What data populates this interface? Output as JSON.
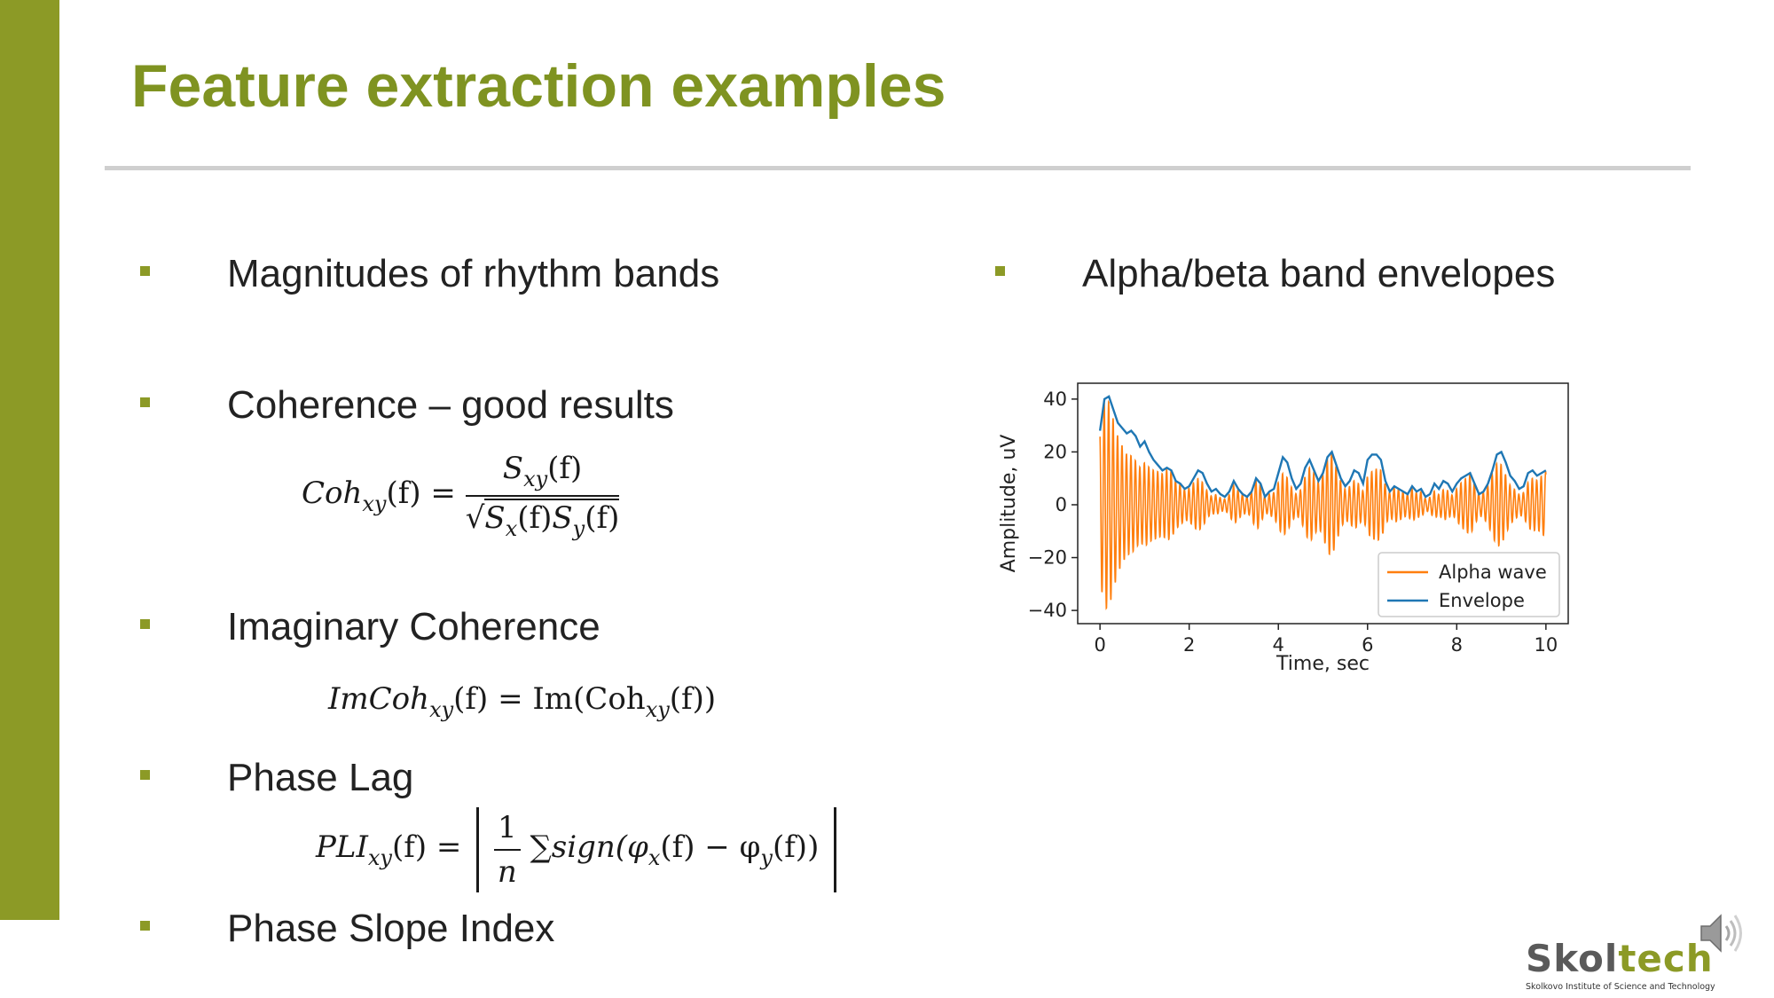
{
  "slide": {
    "title": "Feature extraction examples",
    "colors": {
      "accent": "#8c9a26",
      "title": "#7f9321",
      "rule": "#cfcfcf"
    }
  },
  "left_bullets": [
    {
      "label": "Magnitudes of rhythm bands"
    },
    {
      "label": "Coherence – good results"
    },
    {
      "label": "Imaginary Coherence"
    },
    {
      "label": "Phase Lag"
    },
    {
      "label": "Phase Slope Index"
    }
  ],
  "formulas": {
    "coh": {
      "lhs": "Coh",
      "lhs_sub": "xy",
      "lhs_arg": "(f) =",
      "num": "S",
      "num_sub": "xy",
      "num_arg": "(f)",
      "den_a": "S",
      "den_a_sub": "x",
      "den_a_arg": "(f)",
      "den_b": "S",
      "den_b_sub": "y",
      "den_b_arg": "(f)"
    },
    "imcoh": {
      "lhs": "ImCoh",
      "lhs_sub": "xy",
      "mid": "(f) = Im(Coh",
      "mid_sub": "xy",
      "end": "(f))"
    },
    "pli": {
      "lhs": "PLI",
      "lhs_sub": "xy",
      "lhs_arg": "(f) =",
      "one": "1",
      "n": "n",
      "sum": "∑sign(φ",
      "sub_x": "x",
      "mid": "(f) − φ",
      "sub_y": "y",
      "end": "(f))"
    }
  },
  "right_bullets": [
    {
      "label": "Alpha/beta band envelopes"
    }
  ],
  "chart_data": {
    "type": "line",
    "xlabel": "Time, sec",
    "ylabel": "Amplitude, uV",
    "xlim": [
      -0.5,
      10.5
    ],
    "ylim": [
      -45,
      46
    ],
    "xticks": [
      0,
      2,
      4,
      6,
      8,
      10
    ],
    "yticks": [
      40,
      20,
      0,
      -20,
      -40
    ],
    "grid": false,
    "legend_position": "lower-right",
    "series": [
      {
        "name": "Alpha wave",
        "color": "#ff7f0e",
        "note": "oscillation ~10 Hz bounded by the envelope",
        "frequency_hz": 10
      },
      {
        "name": "Envelope",
        "color": "#1f77b4",
        "x": [
          0.0,
          0.1,
          0.2,
          0.3,
          0.4,
          0.5,
          0.6,
          0.7,
          0.8,
          0.9,
          1.0,
          1.1,
          1.2,
          1.3,
          1.4,
          1.5,
          1.6,
          1.7,
          1.8,
          1.9,
          2.0,
          2.1,
          2.2,
          2.3,
          2.4,
          2.5,
          2.6,
          2.7,
          2.8,
          2.9,
          3.0,
          3.1,
          3.2,
          3.3,
          3.4,
          3.5,
          3.6,
          3.7,
          3.8,
          3.9,
          4.0,
          4.1,
          4.2,
          4.3,
          4.4,
          4.5,
          4.6,
          4.7,
          4.8,
          4.9,
          5.0,
          5.1,
          5.2,
          5.3,
          5.4,
          5.5,
          5.6,
          5.7,
          5.8,
          5.9,
          6.0,
          6.1,
          6.2,
          6.3,
          6.4,
          6.5,
          6.6,
          6.7,
          6.8,
          6.9,
          7.0,
          7.1,
          7.2,
          7.3,
          7.4,
          7.5,
          7.6,
          7.7,
          7.8,
          7.9,
          8.0,
          8.1,
          8.2,
          8.3,
          8.4,
          8.5,
          8.6,
          8.7,
          8.8,
          8.9,
          9.0,
          9.1,
          9.2,
          9.3,
          9.4,
          9.5,
          9.6,
          9.7,
          9.8,
          9.9,
          10.0
        ],
        "y": [
          28,
          40,
          41,
          36,
          31,
          29,
          27,
          28,
          26,
          22,
          24,
          20,
          17,
          15,
          13,
          14,
          13,
          9,
          8,
          6,
          7,
          10,
          13,
          12,
          8,
          5,
          6,
          4,
          3,
          5,
          9,
          6,
          4,
          3,
          5,
          10,
          8,
          3,
          5,
          6,
          12,
          18,
          16,
          10,
          6,
          8,
          14,
          17,
          13,
          9,
          12,
          18,
          20,
          15,
          10,
          7,
          9,
          13,
          12,
          8,
          17,
          19,
          19,
          17,
          9,
          5,
          7,
          6,
          5,
          4,
          7,
          5,
          6,
          3,
          4,
          8,
          6,
          9,
          8,
          5,
          8,
          10,
          11,
          12,
          8,
          4,
          5,
          8,
          13,
          19,
          20,
          16,
          11,
          9,
          6,
          7,
          12,
          13,
          11,
          12,
          13
        ]
      }
    ]
  },
  "logo": {
    "word": "Skoltech",
    "sub": "Skolkovo Institute of Science and Technology"
  }
}
